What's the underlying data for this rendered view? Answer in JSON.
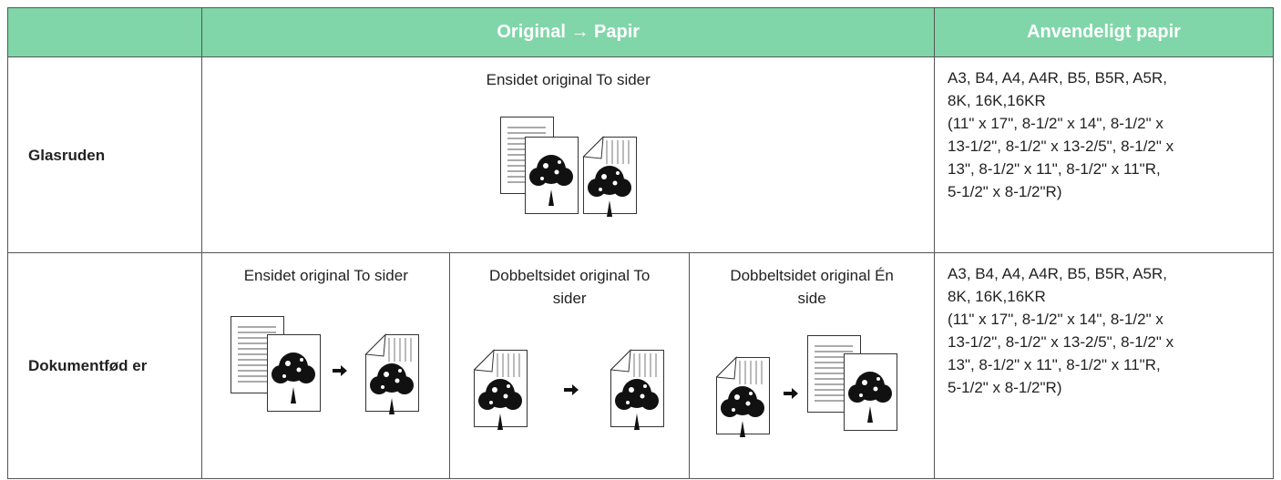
{
  "table": {
    "header": [
      "Original → Papir",
      "Anvendeligt papir"
    ],
    "rows": [
      {
        "label": "Glasruden",
        "cases": [
          "Ensidet original  To sider"
        ],
        "paper": [
          "A3, B4, A4, A4R, B5, B5R, A5R,",
          "8K, 16K,16KR",
          "(11\" x 17\", 8-1/2\" x 14\", 8-1/2\" x",
          "13-1/2\", 8-1/2\" x 13-2/5\", 8-1/2\" x",
          "13\", 8-1/2\" x 11\", 8-1/2\" x 11\"R,",
          "5-1/2\" x 8-1/2\"R)"
        ]
      },
      {
        "label": "Dokumentfød er",
        "cases": [
          "Ensidet original  To sider",
          "Dobbeltsidet original To sider",
          "Dobbeltsidet original Én side"
        ],
        "paper": [
          "A3, B4, A4, A4R, B5, B5R, A5R,",
          "8K, 16K,16KR",
          "(11\" x 17\", 8-1/2\" x 14\", 8-1/2\" x",
          "13-1/2\", 8-1/2\" x 13-2/5\", 8-1/2\" x",
          "13\", 8-1/2\" x 11\", 8-1/2\" x 11\"R,",
          "5-1/2\" x 8-1/2\"R)"
        ]
      }
    ]
  }
}
